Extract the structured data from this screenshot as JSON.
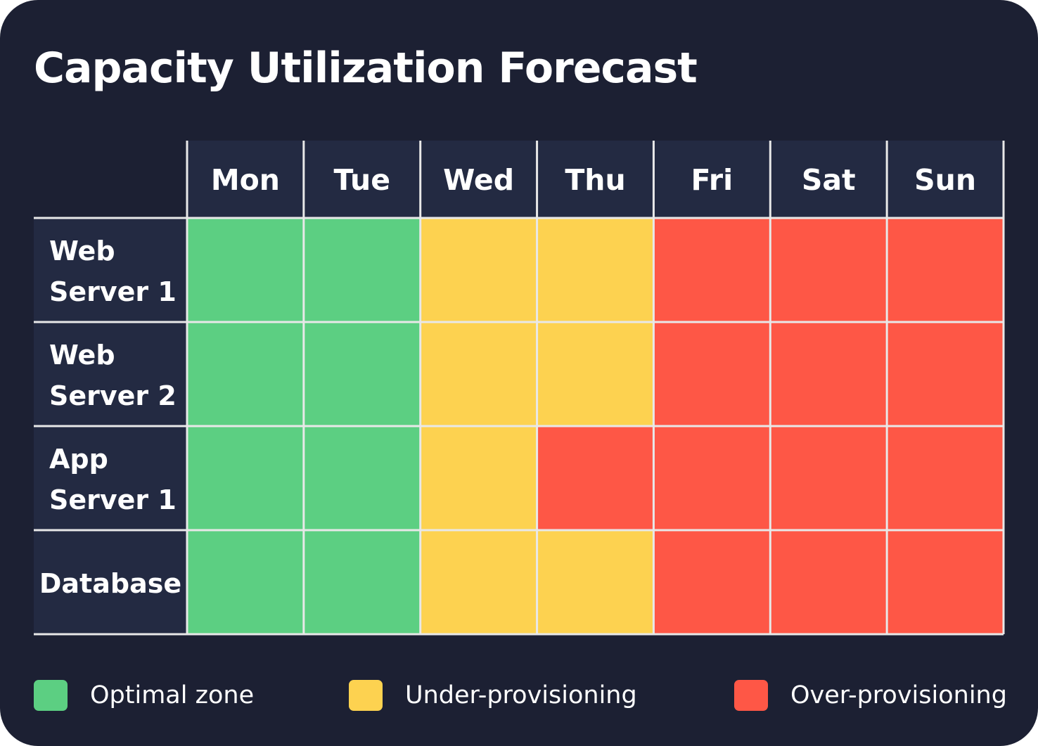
{
  "title": "Capacity Utilization Forecast",
  "colors": {
    "background": "#1c2033",
    "header_cell": "#232a42",
    "grid_line": "#e8e8e8",
    "optimal": "#5ccf82",
    "under": "#fdd250",
    "over": "#fe5746"
  },
  "chart_data": {
    "type": "heatmap",
    "title": "Capacity Utilization Forecast",
    "x": [
      "Mon",
      "Tue",
      "Wed",
      "Thu",
      "Fri",
      "Sat",
      "Sun"
    ],
    "y": [
      [
        "Web",
        "Server 1"
      ],
      [
        "Web",
        "Server 2"
      ],
      [
        "App",
        "Server 1"
      ],
      [
        "Database"
      ]
    ],
    "values": [
      [
        "optimal",
        "optimal",
        "under",
        "under",
        "over",
        "over",
        "over"
      ],
      [
        "optimal",
        "optimal",
        "under",
        "under",
        "over",
        "over",
        "over"
      ],
      [
        "optimal",
        "optimal",
        "under",
        "over",
        "over",
        "over",
        "over"
      ],
      [
        "optimal",
        "optimal",
        "under",
        "under",
        "over",
        "over",
        "over"
      ]
    ],
    "legend_position": "bottom"
  },
  "legend": [
    {
      "key": "optimal",
      "label": "Optimal zone"
    },
    {
      "key": "under",
      "label": "Under-provisioning"
    },
    {
      "key": "over",
      "label": "Over-provisioning"
    }
  ]
}
